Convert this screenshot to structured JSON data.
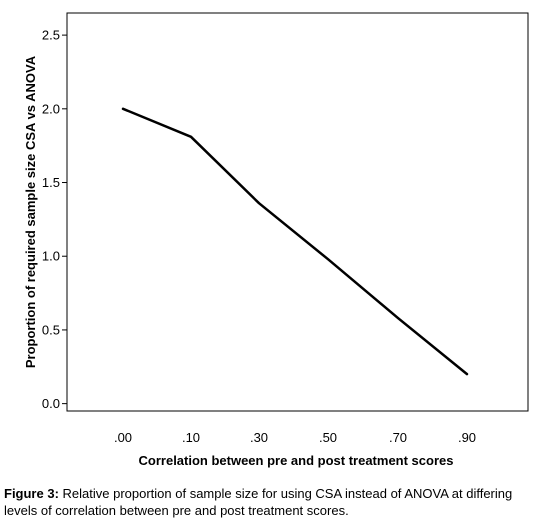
{
  "chart_data": {
    "type": "line",
    "xlabel": "Correlation between pre and post treatment scores",
    "ylabel": "Proportion of required sample size CSA vs ANOVA",
    "x_tick_labels": [
      ".00",
      ".10",
      ".30",
      ".50",
      ".70",
      ".90"
    ],
    "y_tick_labels": [
      "0.0",
      "0.5",
      "1.0",
      "1.5",
      "2.0",
      "2.5"
    ],
    "y_ticks": [
      0.0,
      0.5,
      1.0,
      1.5,
      2.0,
      2.5
    ],
    "ylim": [
      -0.05,
      2.65
    ],
    "x_scale": "categorical (equally spaced)",
    "grid": false,
    "series": [
      {
        "values": [
          2.0,
          1.81,
          1.36,
          0.98,
          0.58,
          0.2
        ],
        "color": "#000000"
      }
    ]
  },
  "caption": {
    "label": "Figure 3:",
    "text": " Relative proportion of sample size for using CSA instead of ANOVA at differing levels of correlation between pre and post treatment scores."
  }
}
